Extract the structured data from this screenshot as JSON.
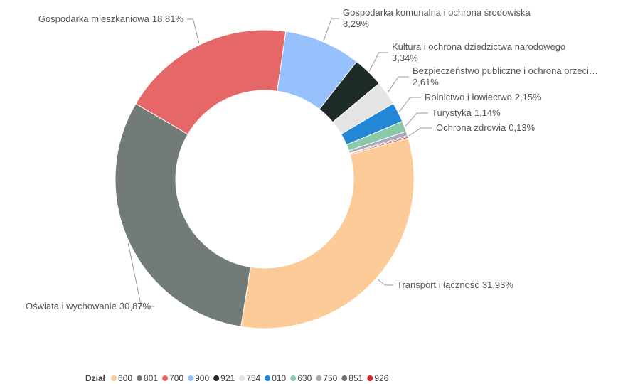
{
  "chart_data": {
    "type": "donut",
    "categories": [
      "600",
      "801",
      "700",
      "900",
      "921",
      "754",
      "010",
      "630",
      "750",
      "851",
      "926"
    ],
    "labels": [
      "Transport i łączność",
      "Oświata i wychowanie",
      "Gospodarka mieszkaniowa",
      "Gospodarka komunalna i ochrona środowiska",
      "Kultura i ochrona dziedzictwa narodowego",
      "Bezpieczeństwo publiczne i ochrona przeci…",
      "Rolnictwo i łowiectwo",
      "Turystyka",
      null,
      "Ochrona zdrowia",
      null
    ],
    "values": [
      31.93,
      30.87,
      18.81,
      8.29,
      3.34,
      2.61,
      2.15,
      1.14,
      0.45,
      0.13,
      0.15
    ],
    "value_labels": [
      "31,93%",
      "30,87%",
      "18,81%",
      "8,29%",
      "3,34%",
      "2,61%",
      "2,15%",
      "1,14%",
      null,
      "0,13%",
      null
    ],
    "colors": [
      "#fccb98",
      "#737b78",
      "#e66767",
      "#97c1fd",
      "#1d2a28",
      "#e4e4e4",
      "#2387d5",
      "#8cc9a9",
      "#a9a9bb",
      "#6a6f74",
      "#d62828"
    ],
    "legend_title": "Dział",
    "legend": "bottom"
  }
}
